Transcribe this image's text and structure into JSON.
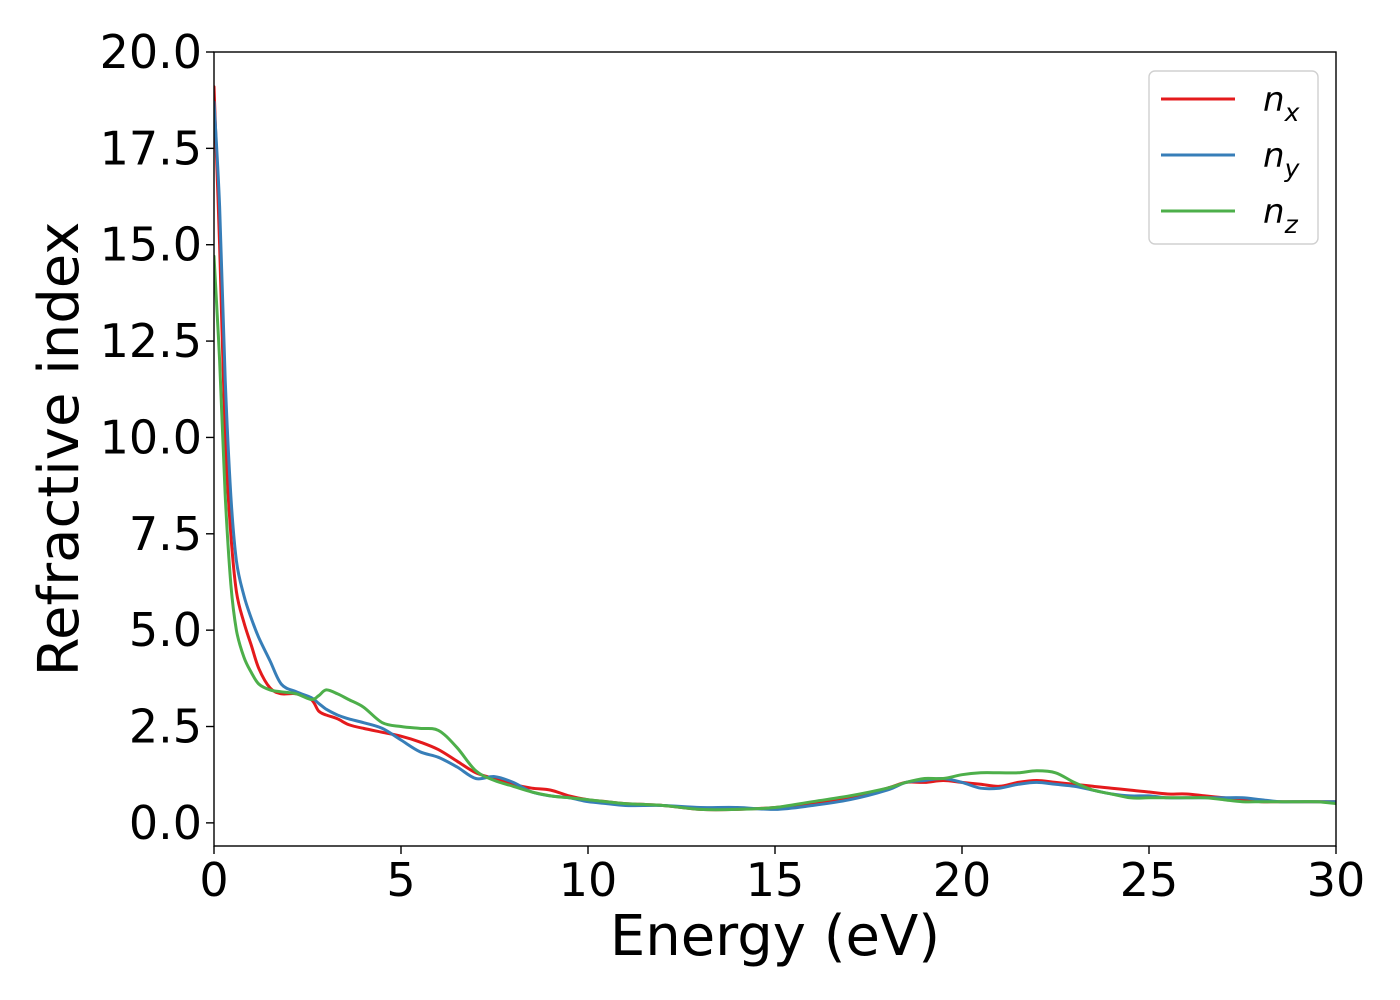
{
  "chart_data": {
    "type": "line",
    "xlabel": "Energy (eV)",
    "ylabel": "Refractive index",
    "xlim": [
      0,
      30
    ],
    "ylim": [
      -0.6,
      20
    ],
    "xticks": [
      "0",
      "5",
      "10",
      "15",
      "20",
      "25",
      "30"
    ],
    "xtick_values": [
      0,
      5,
      10,
      15,
      20,
      25,
      30
    ],
    "yticks": [
      "0.0",
      "2.5",
      "5.0",
      "7.5",
      "10.0",
      "12.5",
      "15.0",
      "17.5",
      "20.0"
    ],
    "ytick_values": [
      0,
      2.5,
      5,
      7.5,
      10,
      12.5,
      15,
      17.5,
      20
    ],
    "grid": false,
    "legend_position": "top-right",
    "series": [
      {
        "name": "n_x",
        "legend_base": "n",
        "legend_sub": "x",
        "color": "#e41a1c",
        "x": [
          0,
          0.15,
          0.3,
          0.45,
          0.6,
          0.8,
          1.0,
          1.2,
          1.5,
          1.8,
          2.2,
          2.6,
          2.8,
          3.0,
          3.3,
          3.6,
          4.0,
          4.5,
          5.0,
          5.5,
          6.0,
          6.5,
          7.0,
          7.5,
          8.0,
          8.5,
          9.0,
          9.5,
          10.0,
          10.5,
          11.0,
          12.0,
          13.0,
          14.0,
          15.0,
          16.0,
          17.0,
          18.0,
          18.5,
          19.0,
          19.5,
          20.0,
          20.5,
          21.0,
          21.5,
          22.0,
          22.5,
          23.0,
          23.5,
          24.0,
          24.5,
          25.0,
          25.5,
          26.0,
          26.5,
          27.0,
          27.5,
          28.0,
          28.5,
          29.0,
          29.5,
          30.0
        ],
        "y": [
          19.1,
          15.0,
          10.0,
          7.5,
          6.0,
          5.2,
          4.6,
          4.0,
          3.5,
          3.35,
          3.35,
          3.2,
          2.9,
          2.8,
          2.7,
          2.55,
          2.45,
          2.35,
          2.25,
          2.1,
          1.9,
          1.6,
          1.3,
          1.15,
          1.0,
          0.9,
          0.85,
          0.7,
          0.6,
          0.55,
          0.5,
          0.45,
          0.35,
          0.35,
          0.4,
          0.5,
          0.65,
          0.9,
          1.05,
          1.05,
          1.1,
          1.05,
          1.0,
          0.95,
          1.05,
          1.1,
          1.05,
          1.0,
          0.95,
          0.9,
          0.85,
          0.8,
          0.75,
          0.75,
          0.7,
          0.65,
          0.6,
          0.55,
          0.55,
          0.55,
          0.55,
          0.55
        ]
      },
      {
        "name": "n_y",
        "legend_base": "n",
        "legend_sub": "y",
        "color": "#377eb8",
        "x": [
          0,
          0.15,
          0.3,
          0.45,
          0.6,
          0.8,
          1.0,
          1.2,
          1.5,
          1.8,
          2.2,
          2.6,
          2.8,
          3.0,
          3.3,
          3.6,
          4.0,
          4.5,
          5.0,
          5.5,
          6.0,
          6.5,
          7.0,
          7.5,
          8.0,
          8.5,
          9.0,
          9.5,
          10.0,
          10.5,
          11.0,
          12.0,
          13.0,
          14.0,
          15.0,
          16.0,
          17.0,
          18.0,
          18.5,
          19.0,
          19.5,
          20.0,
          20.5,
          21.0,
          21.5,
          22.0,
          22.5,
          23.0,
          23.5,
          24.0,
          24.5,
          25.0,
          25.5,
          26.0,
          26.5,
          27.0,
          27.5,
          28.0,
          28.5,
          29.0,
          29.5,
          30.0
        ],
        "y": [
          18.7,
          16.0,
          11.5,
          8.5,
          6.8,
          5.9,
          5.3,
          4.8,
          4.2,
          3.6,
          3.4,
          3.25,
          3.1,
          2.95,
          2.8,
          2.7,
          2.6,
          2.45,
          2.15,
          1.85,
          1.7,
          1.45,
          1.15,
          1.2,
          1.05,
          0.8,
          0.7,
          0.65,
          0.55,
          0.5,
          0.45,
          0.45,
          0.4,
          0.4,
          0.35,
          0.45,
          0.6,
          0.85,
          1.05,
          1.1,
          1.15,
          1.05,
          0.9,
          0.9,
          1.0,
          1.05,
          1.0,
          0.95,
          0.85,
          0.75,
          0.7,
          0.7,
          0.65,
          0.65,
          0.65,
          0.65,
          0.65,
          0.6,
          0.55,
          0.55,
          0.55,
          0.55
        ]
      },
      {
        "name": "n_z",
        "legend_base": "n",
        "legend_sub": "z",
        "color": "#4daf4a",
        "x": [
          0,
          0.15,
          0.3,
          0.45,
          0.6,
          0.8,
          1.0,
          1.2,
          1.5,
          1.8,
          2.2,
          2.6,
          2.8,
          3.0,
          3.3,
          3.6,
          4.0,
          4.5,
          5.0,
          5.5,
          6.0,
          6.5,
          7.0,
          7.5,
          8.0,
          8.5,
          9.0,
          9.5,
          10.0,
          10.5,
          11.0,
          12.0,
          13.0,
          14.0,
          15.0,
          16.0,
          17.0,
          18.0,
          18.5,
          19.0,
          19.5,
          20.0,
          20.5,
          21.0,
          21.5,
          22.0,
          22.5,
          23.0,
          23.5,
          24.0,
          24.5,
          25.0,
          25.5,
          26.0,
          26.5,
          27.0,
          27.5,
          28.0,
          28.5,
          29.0,
          29.5,
          30.0
        ],
        "y": [
          14.7,
          12.0,
          8.5,
          6.2,
          5.0,
          4.3,
          3.9,
          3.6,
          3.45,
          3.4,
          3.35,
          3.2,
          3.3,
          3.45,
          3.35,
          3.2,
          3.0,
          2.6,
          2.5,
          2.45,
          2.4,
          1.95,
          1.35,
          1.1,
          0.95,
          0.8,
          0.7,
          0.65,
          0.6,
          0.55,
          0.5,
          0.45,
          0.35,
          0.35,
          0.4,
          0.55,
          0.7,
          0.9,
          1.05,
          1.15,
          1.15,
          1.25,
          1.3,
          1.3,
          1.3,
          1.35,
          1.3,
          1.05,
          0.85,
          0.75,
          0.65,
          0.65,
          0.65,
          0.65,
          0.65,
          0.6,
          0.55,
          0.55,
          0.55,
          0.55,
          0.55,
          0.5
        ]
      }
    ]
  }
}
